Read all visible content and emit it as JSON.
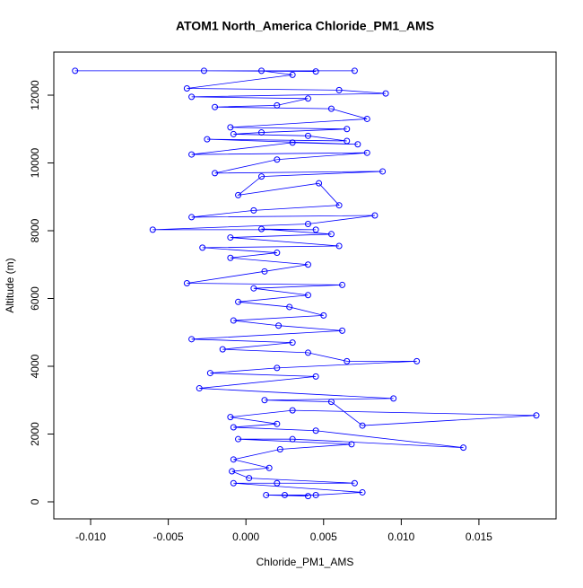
{
  "chart_data": {
    "type": "line",
    "title": "ATOM1 North_America Chloride_PM1_AMS",
    "xlabel": "Chloride_PM1_AMS",
    "ylabel": "Altitude (m)",
    "color": "#0000ff",
    "markers": true,
    "xlim": [
      -0.01237,
      0.01997
    ],
    "ylim": [
      -503,
      13272
    ],
    "xticks": [
      {
        "value": -0.01,
        "label": "-0.010"
      },
      -0.005,
      {
        "value": 0,
        "label": "0.000"
      },
      0.005,
      {
        "value": 0.01,
        "label": "0.010"
      },
      0.015
    ],
    "yticks": [
      0,
      2000,
      4000,
      6000,
      8000,
      10000,
      12000
    ],
    "x": [
      -0.011,
      0.007,
      -0.0027,
      0.0045,
      0.001,
      0.003,
      -0.0038,
      0.006,
      0.009,
      -0.0035,
      0.004,
      0.002,
      -0.002,
      0.0055,
      0.0078,
      -0.001,
      0.0065,
      0.001,
      -0.0008,
      0.004,
      0.0065,
      -0.0025,
      0.0072,
      0.003,
      -0.0035,
      0.0078,
      0.002,
      -0.002,
      0.0088,
      0.001,
      -0.0005,
      0.0047,
      0.006,
      0.0005,
      -0.0035,
      0.0083,
      0.004,
      -0.006,
      0.0045,
      0.001,
      0.0055,
      -0.001,
      0.006,
      -0.0028,
      0.002,
      -0.001,
      0.004,
      0.0012,
      -0.0038,
      0.0062,
      0.0005,
      0.004,
      -0.0005,
      0.0028,
      0.005,
      -0.0008,
      0.0021,
      0.0062,
      -0.0035,
      0.003,
      -0.0015,
      0.004,
      0.0065,
      0.011,
      0.002,
      -0.0023,
      0.0045,
      -0.003,
      0.0095,
      0.0012,
      0.0055,
      0.0075,
      0.0187,
      0.003,
      -0.001,
      0.002,
      -0.0008,
      0.0045,
      0.014,
      0.003,
      -0.0005,
      0.0068,
      0.0022,
      -0.0008,
      0.0015,
      -0.0009,
      0.0002,
      0.007,
      0.002,
      -0.0008,
      0.0075,
      0.0045,
      0.0013,
      0.004,
      0.0025
    ],
    "values": [
      12720,
      12720,
      12720,
      12700,
      12720,
      12600,
      12200,
      12150,
      12050,
      11950,
      11900,
      11700,
      11650,
      11600,
      11300,
      11050,
      11000,
      10900,
      10850,
      10800,
      10650,
      10700,
      10550,
      10600,
      10250,
      10300,
      10100,
      9700,
      9750,
      9600,
      9050,
      9400,
      8750,
      8600,
      8400,
      8450,
      8200,
      8030,
      8030,
      8050,
      7900,
      7800,
      7550,
      7500,
      7350,
      7200,
      7000,
      6800,
      6450,
      6400,
      6300,
      6100,
      5900,
      5750,
      5500,
      5350,
      5200,
      5050,
      4800,
      4700,
      4500,
      4400,
      4150,
      4150,
      3950,
      3800,
      3700,
      3350,
      3050,
      3000,
      2950,
      2250,
      2550,
      2700,
      2500,
      2300,
      2200,
      2100,
      1600,
      1850,
      1850,
      1700,
      1550,
      1250,
      1000,
      900,
      700,
      550,
      550,
      550,
      280,
      200,
      200,
      170,
      200
    ]
  }
}
